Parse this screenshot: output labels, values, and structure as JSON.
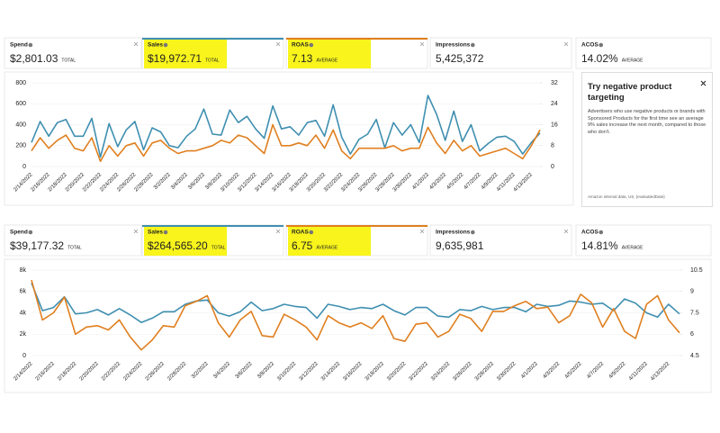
{
  "metric_rows": [
    [
      {
        "label": "Spend",
        "value": "$2,801.03",
        "unit": "TOTAL"
      },
      {
        "label": "Sales",
        "value": "$19,972.71",
        "unit": "TOTAL",
        "highlight": true,
        "color": "#3f8fb0"
      },
      {
        "label": "ROAS",
        "value": "7.13",
        "unit": "AVERAGE",
        "highlight": true,
        "color": "#e07f1f"
      },
      {
        "label": "Impressions",
        "value": "5,425,372"
      },
      {
        "label": "ACOS",
        "value": "14.02%",
        "unit": "AVERAGE"
      }
    ],
    [
      {
        "label": "Spend",
        "value": "$39,177.32",
        "unit": "TOTAL"
      },
      {
        "label": "Sales",
        "value": "$264,565.20",
        "unit": "TOTAL",
        "highlight": true,
        "color": "#3f8fb0"
      },
      {
        "label": "ROAS",
        "value": "6.75",
        "unit": "AVERAGE",
        "highlight": true,
        "color": "#e07f1f"
      },
      {
        "label": "Impressions",
        "value": "9,635,981"
      },
      {
        "label": "ACOS",
        "value": "14.81%",
        "unit": "AVERAGE"
      }
    ]
  ],
  "tip": {
    "title": "Try negative product targeting",
    "body": "Advertisers who use negative products or brands with Sponsored Products for the first time see an average 9% sales increase the next month, compared to those who don't.",
    "source": "Amazon internal data, US, {evaluatedDate}"
  },
  "chart_data": [
    {
      "type": "line",
      "grid": true,
      "categories": [
        "2/14/2022",
        null,
        "2/16/2022",
        null,
        "2/18/2022",
        null,
        "2/20/2022",
        null,
        "2/22/2022",
        null,
        "2/24/2022",
        null,
        "2/26/2022",
        null,
        "2/28/2022",
        null,
        "3/2/2022",
        null,
        "3/4/2022",
        null,
        "3/6/2022",
        null,
        "3/8/2022",
        null,
        "3/10/2022",
        null,
        "3/12/2022",
        null,
        "3/14/2022",
        null,
        "3/16/2022",
        null,
        "3/18/2022",
        null,
        "3/20/2022",
        null,
        "3/22/2022",
        null,
        "3/24/2022",
        null,
        "3/26/2022",
        null,
        "3/28/2022",
        null,
        "3/30/2022",
        null,
        "4/1/2022",
        null,
        "4/3/2022",
        null,
        "4/5/2022",
        null,
        "4/7/2022",
        null,
        "4/9/2022",
        null,
        "4/11/2022",
        null,
        "4/13/2022",
        null
      ],
      "ylim": [
        0,
        800
      ],
      "yticks": [
        0,
        200,
        400,
        600,
        800
      ],
      "y2lim": [
        0,
        32
      ],
      "y2ticks": [
        0,
        8,
        16,
        24,
        32
      ],
      "series": [
        {
          "color": "#3f8fb0",
          "values": [
            230,
            430,
            290,
            420,
            450,
            290,
            290,
            460,
            90,
            410,
            190,
            350,
            430,
            160,
            370,
            330,
            200,
            180,
            290,
            360,
            550,
            310,
            300,
            540,
            420,
            480,
            360,
            270,
            580,
            360,
            380,
            300,
            420,
            440,
            290,
            590,
            280,
            120,
            260,
            310,
            450,
            180,
            420,
            300,
            400,
            230,
            680,
            500,
            250,
            530,
            240,
            400,
            150,
            220,
            280,
            290,
            240,
            120,
            230,
            320
          ]
        },
        {
          "color": "#e07f1f",
          "axis": "y2",
          "values": [
            6,
            11,
            7,
            10,
            12,
            7,
            6,
            11,
            2,
            8,
            4,
            8,
            9,
            4,
            9,
            10,
            7,
            5,
            6,
            6,
            7,
            8,
            10,
            9,
            12,
            11,
            8,
            5,
            16,
            8,
            8,
            9,
            8,
            12,
            7,
            14,
            6,
            3,
            7,
            7,
            7,
            7,
            8,
            6,
            7,
            7,
            15,
            9,
            5,
            10,
            6,
            8,
            4,
            5,
            6,
            7,
            5,
            3,
            8,
            14
          ]
        }
      ]
    },
    {
      "type": "line",
      "grid": true,
      "categories": [
        "2/14/2022",
        null,
        "2/16/2022",
        null,
        "2/18/2022",
        null,
        "2/20/2022",
        null,
        "2/22/2022",
        null,
        "2/24/2022",
        null,
        "2/26/2022",
        null,
        "2/28/2022",
        null,
        "3/2/2022",
        null,
        "3/4/2022",
        null,
        "3/6/2022",
        null,
        "3/8/2022",
        null,
        "3/10/2022",
        null,
        "3/12/2022",
        null,
        "3/14/2022",
        null,
        "3/16/2022",
        null,
        "3/18/2022",
        null,
        "3/20/2022",
        null,
        "3/22/2022",
        null,
        "3/24/2022",
        null,
        "3/26/2022",
        null,
        "3/28/2022",
        null,
        "3/30/2022",
        null,
        "4/1/2022",
        null,
        "4/3/2022",
        null,
        "4/5/2022",
        null,
        "4/7/2022",
        null,
        "4/9/2022",
        null,
        "4/11/2022",
        null,
        "4/13/2022",
        null
      ],
      "ylim": [
        0,
        8000
      ],
      "yticks": [
        0,
        {
          "value": 2000,
          "label": "2k"
        },
        {
          "value": 4000,
          "label": "4k"
        },
        {
          "value": 6000,
          "label": "6k"
        },
        {
          "value": 8000,
          "label": "8k"
        }
      ],
      "y2lim": [
        4.5,
        10.5
      ],
      "y2ticks": [
        4.5,
        6,
        7.5,
        9,
        10.5
      ],
      "series": [
        {
          "color": "#3f8fb0",
          "values": [
            6800,
            4200,
            4500,
            5500,
            3900,
            4000,
            4300,
            3800,
            4400,
            3800,
            3100,
            3500,
            4100,
            4100,
            4800,
            5100,
            5200,
            4000,
            3700,
            4100,
            5000,
            4200,
            4400,
            4800,
            4600,
            4500,
            3500,
            4800,
            4600,
            4300,
            4500,
            4400,
            4800,
            4200,
            3800,
            4500,
            4500,
            3700,
            3600,
            4300,
            4200,
            4600,
            4300,
            4500,
            4500,
            4100,
            4800,
            4600,
            4700,
            5100,
            5000,
            4800,
            4900,
            4200,
            5300,
            4900,
            4000,
            3600,
            4800,
            3900
          ]
        },
        {
          "color": "#e07f1f",
          "axis": "y2",
          "values": [
            9.8,
            7.0,
            7.5,
            8.6,
            6.0,
            6.5,
            6.6,
            6.3,
            7.0,
            5.8,
            4.9,
            5.6,
            6.6,
            6.5,
            8.0,
            8.3,
            8.7,
            6.8,
            5.8,
            7.0,
            7.6,
            5.9,
            5.8,
            7.4,
            7.0,
            6.5,
            5.6,
            7.3,
            6.8,
            6.5,
            6.8,
            6.4,
            7.3,
            5.7,
            5.5,
            6.7,
            6.8,
            5.8,
            6.2,
            7.4,
            7.1,
            6.2,
            7.6,
            7.6,
            8.0,
            8.3,
            7.8,
            7.9,
            6.8,
            7.3,
            8.8,
            8.2,
            6.5,
            7.8,
            6.2,
            5.7,
            8.1,
            8.7,
            7.0,
            6.1
          ]
        }
      ]
    }
  ]
}
